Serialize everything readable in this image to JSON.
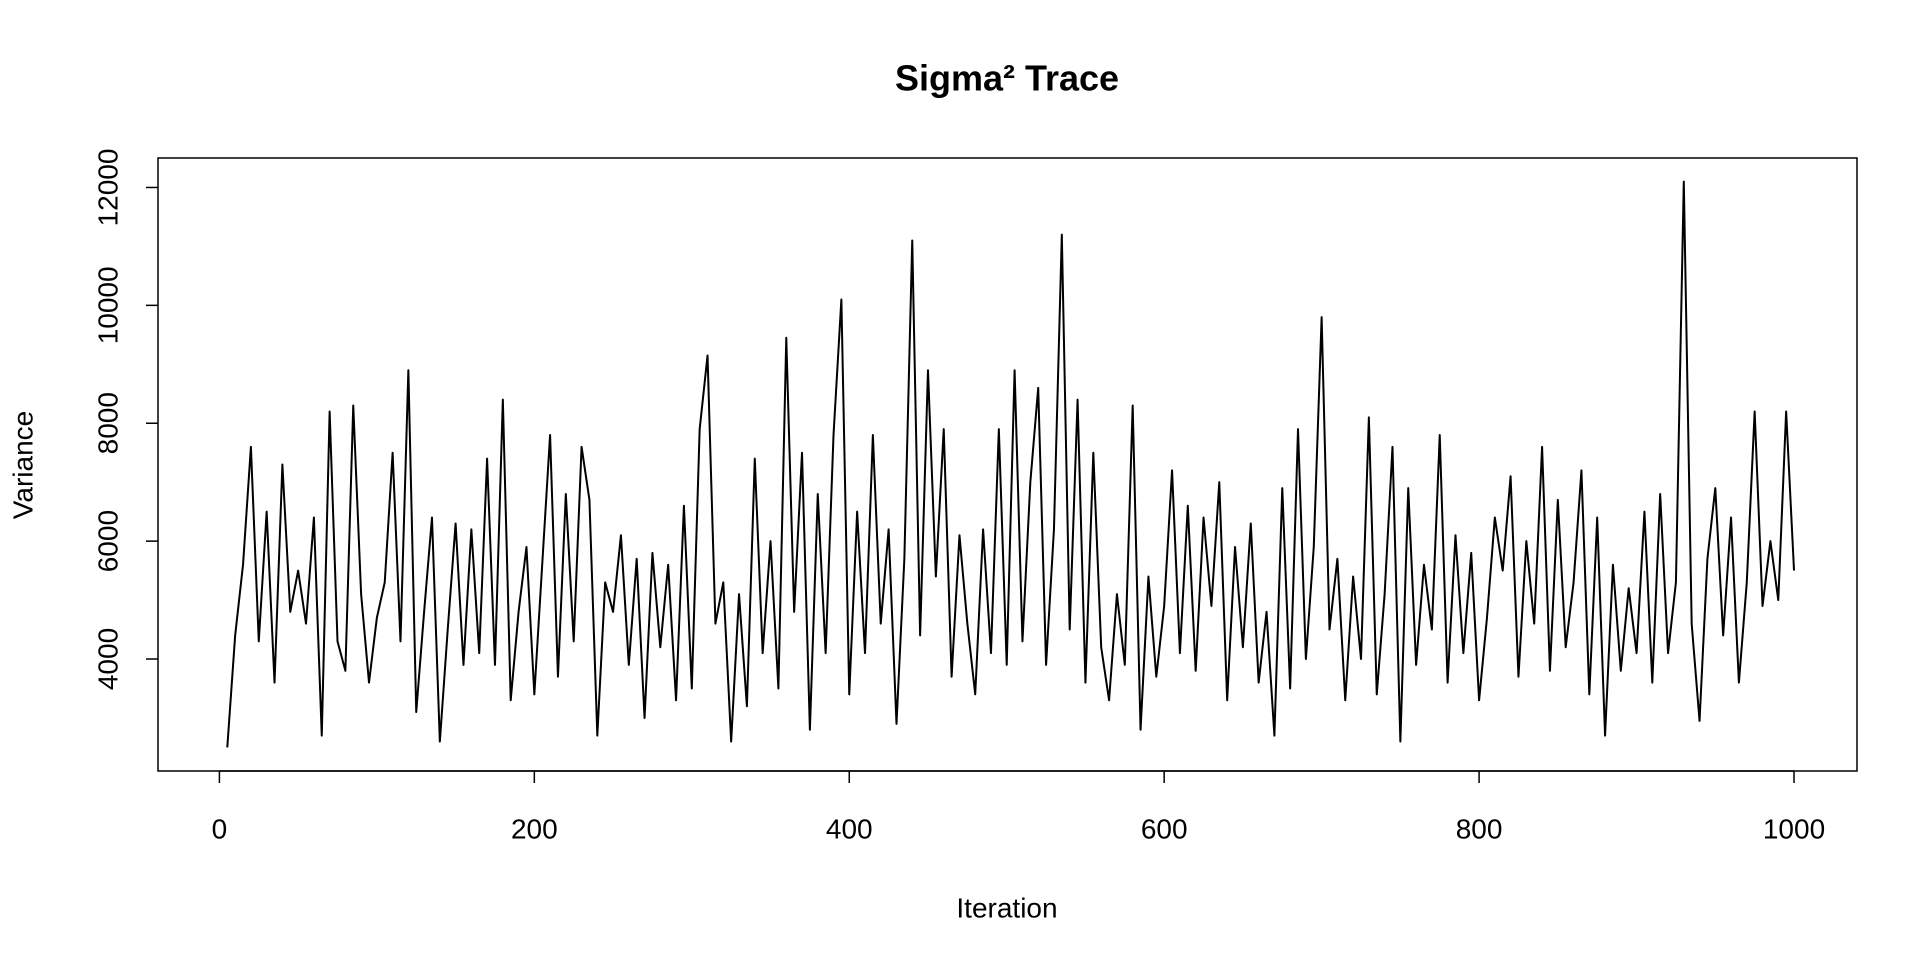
{
  "chart_data": {
    "type": "line",
    "title": "Sigma² Trace",
    "x_label": "Iteration",
    "y_label": "Variance",
    "xlim": [
      -39,
      1040
    ],
    "ylim": [
      2100,
      12500
    ],
    "xticks": [
      0,
      200,
      400,
      600,
      800,
      1000
    ],
    "yticks": [
      4000,
      6000,
      8000,
      10000,
      12000
    ],
    "x": [
      5,
      10,
      15,
      20,
      25,
      30,
      35,
      40,
      45,
      50,
      55,
      60,
      65,
      70,
      75,
      80,
      85,
      90,
      95,
      100,
      105,
      110,
      115,
      120,
      125,
      130,
      135,
      140,
      145,
      150,
      155,
      160,
      165,
      170,
      175,
      180,
      185,
      190,
      195,
      200,
      205,
      210,
      215,
      220,
      225,
      230,
      235,
      240,
      245,
      250,
      255,
      260,
      265,
      270,
      275,
      280,
      285,
      290,
      295,
      300,
      305,
      310,
      315,
      320,
      325,
      330,
      335,
      340,
      345,
      350,
      355,
      360,
      365,
      370,
      375,
      380,
      385,
      390,
      395,
      400,
      405,
      410,
      415,
      420,
      425,
      430,
      435,
      440,
      445,
      450,
      455,
      460,
      465,
      470,
      475,
      480,
      485,
      490,
      495,
      500,
      505,
      510,
      515,
      520,
      525,
      530,
      535,
      540,
      545,
      550,
      555,
      560,
      565,
      570,
      575,
      580,
      585,
      590,
      595,
      600,
      605,
      610,
      615,
      620,
      625,
      630,
      635,
      640,
      645,
      650,
      655,
      660,
      665,
      670,
      675,
      680,
      685,
      690,
      695,
      700,
      705,
      710,
      715,
      720,
      725,
      730,
      735,
      740,
      745,
      750,
      755,
      760,
      765,
      770,
      775,
      780,
      785,
      790,
      795,
      800,
      805,
      810,
      815,
      820,
      825,
      830,
      835,
      840,
      845,
      850,
      855,
      860,
      865,
      870,
      875,
      880,
      885,
      890,
      895,
      900,
      905,
      910,
      915,
      920,
      925,
      930,
      935,
      940,
      945,
      950,
      955,
      960,
      965,
      970,
      975,
      980,
      985,
      990,
      995,
      1000
    ],
    "series": [
      {
        "name": "Sigma²",
        "color": "#000000",
        "values": [
          2500,
          4400,
          5600,
          7600,
          4300,
          6500,
          3600,
          7300,
          4800,
          5500,
          4600,
          6400,
          2700,
          8200,
          4300,
          3800,
          8300,
          5100,
          3600,
          4700,
          5300,
          7500,
          4300,
          8900,
          3100,
          4800,
          6400,
          2600,
          4500,
          6300,
          3900,
          6200,
          4100,
          7400,
          3900,
          8400,
          3300,
          4800,
          5900,
          3400,
          5600,
          7800,
          3700,
          6800,
          4300,
          7600,
          6700,
          2700,
          5300,
          4800,
          6100,
          3900,
          5700,
          3000,
          5800,
          4200,
          5600,
          3300,
          6600,
          3500,
          7900,
          9150,
          4600,
          5300,
          2600,
          5100,
          3200,
          7400,
          4100,
          6000,
          3500,
          9450,
          4800,
          7500,
          2800,
          6800,
          4100,
          7800,
          10100,
          3400,
          6500,
          4100,
          7800,
          4600,
          6200,
          2900,
          5700,
          11100,
          4400,
          8900,
          5400,
          7900,
          3700,
          6100,
          4600,
          3400,
          6200,
          4100,
          7900,
          3900,
          8900,
          4300,
          7000,
          8600,
          3900,
          6200,
          11200,
          4500,
          8400,
          3600,
          7500,
          4200,
          3300,
          5100,
          3900,
          8300,
          2800,
          5400,
          3700,
          4900,
          7200,
          4100,
          6600,
          3800,
          6400,
          4900,
          7000,
          3300,
          5900,
          4200,
          6300,
          3600,
          4800,
          2700,
          6900,
          3500,
          7900,
          4000,
          5900,
          9800,
          4500,
          5700,
          3300,
          5400,
          4000,
          8100,
          3400,
          5100,
          7600,
          2600,
          6900,
          3900,
          5600,
          4500,
          7800,
          3600,
          6100,
          4100,
          5800,
          3300,
          4700,
          6400,
          5500,
          7100,
          3700,
          6000,
          4600,
          7600,
          3800,
          6700,
          4200,
          5300,
          7200,
          3400,
          6400,
          2700,
          5600,
          3800,
          5200,
          4100,
          6500,
          3600,
          6800,
          4100,
          5300,
          12100,
          4600,
          2950,
          5700,
          6900,
          4400,
          6400,
          3600,
          5300,
          8200,
          4900,
          6000,
          5000,
          8200,
          5500
        ]
      }
    ]
  }
}
